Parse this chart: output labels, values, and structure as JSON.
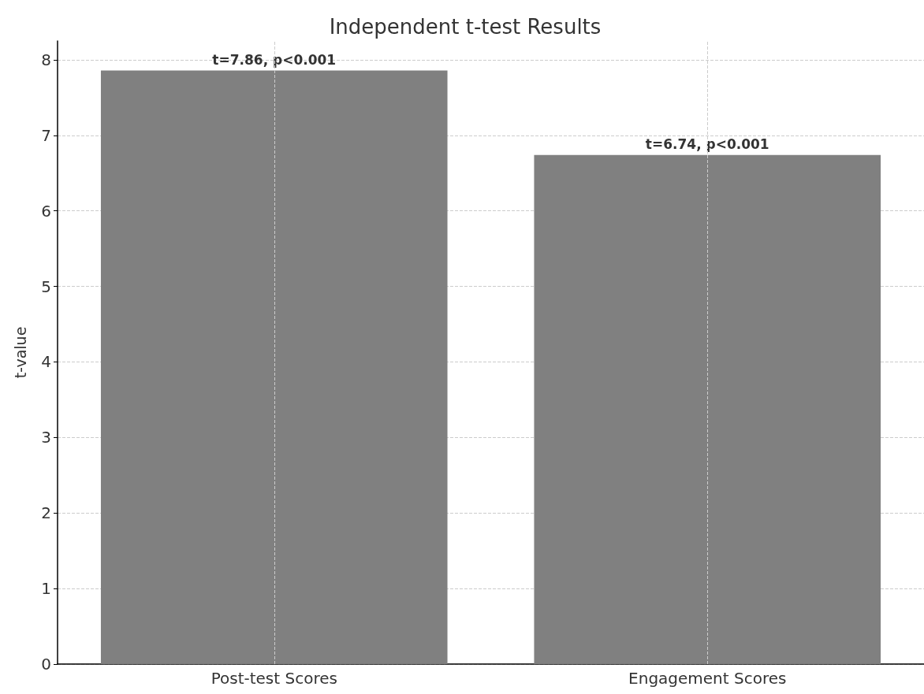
{
  "chart_data": {
    "type": "bar",
    "title": "Independent t-test Results",
    "ylabel": "t-value",
    "categories": [
      "Post-test Scores",
      "Engagement Scores"
    ],
    "values": [
      7.86,
      6.74
    ],
    "color": "#808080",
    "value_labels": [
      "t=7.86, p<0.001",
      "t=6.74, p<0.001"
    ],
    "ylim": [
      0,
      8.25
    ],
    "yticks": [
      0,
      1,
      2,
      3,
      4,
      5,
      6,
      7,
      8
    ],
    "grid": true
  }
}
